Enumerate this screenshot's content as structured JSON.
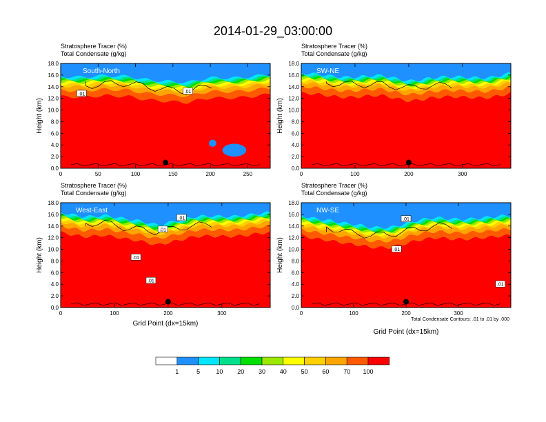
{
  "figure_title": "2014-01-29_03:00:00",
  "footnote": "Total Condensate Contours: .01 to .01 by .000",
  "colorbar": {
    "labels": [
      "1",
      "5",
      "10",
      "20",
      "30",
      "40",
      "50",
      "60",
      "70",
      "100"
    ],
    "colors": [
      "#ffffff",
      "#1e90ff",
      "#00e5ff",
      "#00e08a",
      "#00e000",
      "#9be800",
      "#ffff00",
      "#ffd000",
      "#ffa500",
      "#ff5a00",
      "#ff0000"
    ]
  },
  "chart_data": [
    {
      "type": "heatmap",
      "panel_label": "South-North",
      "title_line1": "Stratosphere Tracer   (%)",
      "title_line2": "Total Condensate   (g/kg)",
      "ylabel": "Height (km)",
      "xlabel": "",
      "xlim": [
        0,
        280
      ],
      "ylim": [
        0,
        18
      ],
      "xticks": [
        0,
        50,
        100,
        150,
        200,
        250
      ],
      "yticks": [
        "0.0",
        "2.0",
        "4.0",
        "6.0",
        "8.0",
        "10.0",
        "12.0",
        "14.0",
        "16.0",
        "18.0"
      ],
      "marker_x": 140,
      "marker_y": 1.0,
      "contour_labels": [
        {
          "text": ".01",
          "x": 28,
          "y": 12.8
        },
        {
          "text": ".01",
          "x": 170,
          "y": 13.2
        }
      ],
      "tropopause_km": [
        [
          0,
          15.4
        ],
        [
          30,
          15.1
        ],
        [
          60,
          15.5
        ],
        [
          90,
          15.6
        ],
        [
          120,
          14.9
        ],
        [
          150,
          14.4
        ],
        [
          170,
          14.2
        ],
        [
          200,
          15.2
        ],
        [
          240,
          15.4
        ],
        [
          280,
          15.7
        ]
      ],
      "cyan_patches": [
        {
          "x": 232,
          "y": 3.1,
          "rx": 16,
          "ry": 1.1
        },
        {
          "x": 203,
          "y": 4.3,
          "rx": 5,
          "ry": 0.6
        }
      ]
    },
    {
      "type": "heatmap",
      "panel_label": "SW-NE",
      "title_line1": "Stratosphere Tracer   (%)",
      "title_line2": "Total Condensate   (g/kg)",
      "ylabel": "Height (km)",
      "xlabel": "",
      "xlim": [
        0,
        390
      ],
      "ylim": [
        0,
        18
      ],
      "xticks": [
        0,
        100,
        200,
        300
      ],
      "yticks": [
        "0.0",
        "2.0",
        "4.0",
        "6.0",
        "8.0",
        "10.0",
        "12.0",
        "14.0",
        "16.0",
        "18.0"
      ],
      "marker_x": 200,
      "marker_y": 1.0,
      "contour_labels": [],
      "tropopause_km": [
        [
          0,
          15.8
        ],
        [
          50,
          15.6
        ],
        [
          100,
          15.4
        ],
        [
          150,
          15.4
        ],
        [
          180,
          15.0
        ],
        [
          200,
          14.8
        ],
        [
          240,
          15.2
        ],
        [
          300,
          15.2
        ],
        [
          350,
          15.4
        ],
        [
          390,
          15.9
        ]
      ],
      "cyan_patches": []
    },
    {
      "type": "heatmap",
      "panel_label": "West-East",
      "title_line1": "Stratosphere Tracer   (%)",
      "title_line2": "Total Condensate   (g/kg)",
      "ylabel": "Height (km)",
      "xlabel": "Grid Point (dx=15km)",
      "xlim": [
        0,
        390
      ],
      "ylim": [
        0,
        18
      ],
      "xticks": [
        0,
        100,
        200,
        300
      ],
      "yticks": [
        "0.0",
        "2.0",
        "4.0",
        "6.0",
        "8.0",
        "10.0",
        "12.0",
        "14.0",
        "16.0",
        "18.0"
      ],
      "marker_x": 200,
      "marker_y": 1.0,
      "contour_labels": [
        {
          "text": ".01",
          "x": 140,
          "y": 8.6
        },
        {
          "text": ".01",
          "x": 168,
          "y": 4.6
        },
        {
          "text": ".01",
          "x": 190,
          "y": 13.4
        },
        {
          "text": ".01",
          "x": 225,
          "y": 15.4
        }
      ],
      "tropopause_km": [
        [
          0,
          15.8
        ],
        [
          40,
          15.4
        ],
        [
          80,
          15.6
        ],
        [
          120,
          14.7
        ],
        [
          150,
          14.4
        ],
        [
          180,
          14.0
        ],
        [
          200,
          14.4
        ],
        [
          250,
          15.1
        ],
        [
          320,
          15.5
        ],
        [
          390,
          15.8
        ]
      ],
      "cyan_patches": []
    },
    {
      "type": "heatmap",
      "panel_label": "NW-SE",
      "title_line1": "Stratosphere Tracer   (%)",
      "title_line2": "Total Condensate   (g/kg)",
      "ylabel": "Height (km)",
      "xlabel": "Grid Point (dx=15km)",
      "xlim": [
        0,
        400
      ],
      "ylim": [
        0,
        18
      ],
      "xticks": [
        0,
        100,
        200,
        300
      ],
      "yticks": [
        "0.0",
        "2.0",
        "4.0",
        "6.0",
        "8.0",
        "10.0",
        "12.0",
        "14.0",
        "16.0",
        "18.0"
      ],
      "marker_x": 200,
      "marker_y": 1.0,
      "contour_labels": [
        {
          "text": ".01",
          "x": 200,
          "y": 15.2
        },
        {
          "text": ".01",
          "x": 182,
          "y": 10.0
        },
        {
          "text": ".01",
          "x": 380,
          "y": 4.0
        }
      ],
      "tropopause_km": [
        [
          0,
          15.4
        ],
        [
          50,
          14.8
        ],
        [
          90,
          13.9
        ],
        [
          130,
          13.4
        ],
        [
          170,
          13.6
        ],
        [
          210,
          14.3
        ],
        [
          260,
          15.0
        ],
        [
          320,
          15.0
        ],
        [
          360,
          15.0
        ],
        [
          400,
          15.4
        ]
      ],
      "cyan_patches": []
    }
  ]
}
